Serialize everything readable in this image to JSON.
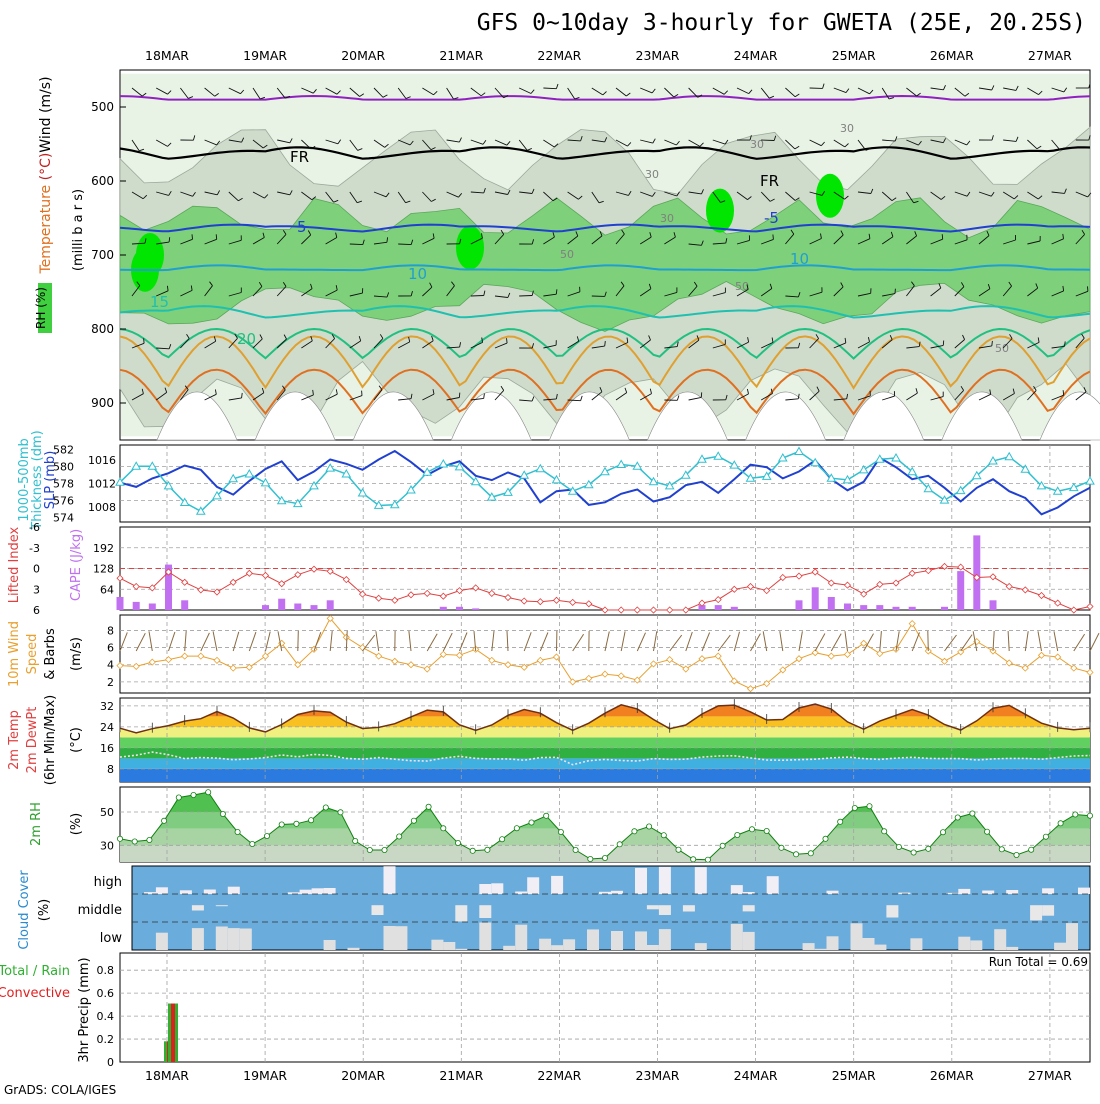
{
  "title": "GFS 0~10day 3-hourly for GWETA (25E, 20.25S)",
  "footer": "GrADS: COLA/IGES",
  "run_total": "Run Total = 0.69",
  "colors": {
    "rh_green": "#00e600",
    "wind_temp_purple": "#9a20c8",
    "slp_blue": "#2040d0",
    "thick_cyan": "#30c0d0",
    "cape_bar": "#c070f0",
    "li_red": "#e04040",
    "wind_orange": "#e8a030",
    "rh2m_green": "#40c040",
    "cloud_blue": "#6aacdc",
    "precip_green": "#30b030",
    "precip_red": "#e02020"
  },
  "chart_data": [
    {
      "type": "heatmap",
      "name_panel": "upper-air cross-section",
      "ylabel_parts": [
        "RH (%)",
        "Temperature (°C)",
        "Wind (m/s)"
      ],
      "ylabel_right": "(milli b a r s)",
      "x_ticks": [
        "18MAR",
        "19MAR",
        "20MAR",
        "21MAR",
        "22MAR",
        "23MAR",
        "24MAR",
        "25MAR",
        "26MAR",
        "27MAR"
      ],
      "y_ticks": [
        "500",
        "600",
        "700",
        "800",
        "900"
      ],
      "ylim": [
        950,
        450
      ],
      "isotherm_labels": [
        "-5",
        "FR",
        "FR",
        "5",
        "10",
        "15",
        "20",
        "-5",
        "10"
      ],
      "rh_labels": [
        "30",
        "30",
        "30",
        "30",
        "50",
        "50",
        "50"
      ]
    },
    {
      "type": "line",
      "name_panel": "thickness and slp",
      "ylabel_left": "1000-500mb Thickness (dm)",
      "ylabel_right": "SLP (mb)",
      "left_ticks": [
        "582",
        "580",
        "578",
        "576",
        "574"
      ],
      "right_ticks": [
        "1016",
        "1012",
        "1008"
      ],
      "series": [
        {
          "name": "Thickness",
          "values": [
            578.1,
            577.6,
            578.6,
            579.2,
            580.1,
            579.6,
            577.6,
            576.7,
            578.3,
            579.7,
            580.6,
            578.4,
            579.4,
            580.8,
            580.3,
            579.6,
            580.8,
            581.8,
            580.5,
            579.0,
            580.0,
            580.6,
            578.9,
            578.4,
            579.3,
            578.6,
            575.8,
            577.1,
            577.3,
            575.5,
            575.8,
            576.8,
            577.3,
            575.9,
            576.4,
            577.8,
            578.2,
            576.9,
            578.5,
            580.2,
            579.9,
            578.6,
            579.4,
            580.7,
            578.5,
            577.2,
            578.2,
            581.0,
            579.9,
            578.5,
            578.9,
            577.5,
            575.9,
            577.5,
            578.5,
            577.1,
            576.3,
            574.4,
            575.2,
            576.5,
            577.5
          ]
        },
        {
          "name": "SLP",
          "values": [
            1012.2,
            1014.9,
            1014.9,
            1011.6,
            1008.8,
            1007.3,
            1009.9,
            1012.8,
            1013.6,
            1012.1,
            1009.1,
            1008.6,
            1011.6,
            1014.6,
            1013.6,
            1010.4,
            1008.3,
            1008.4,
            1010.9,
            1013.9,
            1015.3,
            1014.8,
            1012.3,
            1009.7,
            1010.5,
            1013.4,
            1014.5,
            1012.6,
            1010.7,
            1011.8,
            1014.0,
            1015.2,
            1014.9,
            1012.3,
            1011.6,
            1013.4,
            1016.1,
            1016.6,
            1015.1,
            1012.9,
            1013.2,
            1016.3,
            1017.4,
            1015.5,
            1012.9,
            1012.6,
            1014.3,
            1016.1,
            1016.3,
            1014.0,
            1011.1,
            1009.2,
            1010.8,
            1013.3,
            1015.8,
            1016.5,
            1014.4,
            1011.6,
            1010.7,
            1011.3,
            1012.4
          ]
        }
      ]
    },
    {
      "type": "bar",
      "name_panel": "cape and lifted index",
      "ylabel_left": "Lifted Index",
      "ylabel_right": "CAPE (J/kg)",
      "li_ticks": [
        "-6",
        "-3",
        "0",
        "3",
        "6"
      ],
      "cape_ticks": [
        "192",
        "128",
        "64"
      ],
      "series": [
        {
          "name": "CAPE",
          "values": [
            40,
            25,
            20,
            140,
            30,
            0,
            0,
            0,
            0,
            15,
            35,
            20,
            15,
            30,
            0,
            0,
            0,
            0,
            0,
            0,
            10,
            10,
            5,
            0,
            0,
            0,
            0,
            0,
            0,
            0,
            0,
            0,
            0,
            0,
            0,
            0,
            15,
            15,
            10,
            0,
            0,
            0,
            30,
            70,
            40,
            20,
            15,
            15,
            10,
            10,
            0,
            10,
            120,
            230,
            30,
            0,
            0,
            0,
            0,
            0,
            0
          ]
        },
        {
          "name": "Lifted Index",
          "values": [
            1.4,
            2.6,
            2.8,
            0.5,
            2.0,
            3.1,
            3.4,
            2.0,
            0.7,
            1.0,
            2.2,
            0.9,
            0.1,
            0.4,
            1.6,
            3.7,
            4.3,
            4.6,
            3.8,
            3.6,
            4.0,
            3.2,
            2.8,
            3.6,
            4.2,
            4.7,
            4.8,
            4.6,
            4.9,
            5.1,
            6.0,
            6.0,
            6.0,
            6.0,
            6.0,
            6.0,
            5.0,
            4.5,
            3.0,
            2.6,
            3.2,
            1.3,
            1.1,
            0.5,
            2.1,
            2.4,
            3.7,
            2.3,
            2.1,
            0.7,
            0.3,
            -0.3,
            -0.2,
            1.3,
            1.2,
            2.6,
            3.1,
            3.9,
            5.0,
            6.0,
            5.5
          ]
        }
      ]
    },
    {
      "type": "line",
      "name_panel": "10m wind",
      "ylabel": "10m Wind Speed & Barbs (m/s)",
      "ticks": [
        "8",
        "6",
        "4",
        "2"
      ],
      "series": [
        {
          "name": "10m Wind Speed",
          "values": [
            3.9,
            3.8,
            4.3,
            4.6,
            5.0,
            5.0,
            4.5,
            3.6,
            3.7,
            5.0,
            6.5,
            4.0,
            5.8,
            9.4,
            7.2,
            6.0,
            5.0,
            4.4,
            4.0,
            3.5,
            5.2,
            5.1,
            5.8,
            4.5,
            4.0,
            3.7,
            4.5,
            4.9,
            2.0,
            2.4,
            2.9,
            2.7,
            2.2,
            4.1,
            4.6,
            3.5,
            4.7,
            5.0,
            2.1,
            1.2,
            1.8,
            3.4,
            4.7,
            5.4,
            5.0,
            5.2,
            6.5,
            5.3,
            5.8,
            8.8,
            5.6,
            4.4,
            5.5,
            6.7,
            5.6,
            4.2,
            3.6,
            5.1,
            4.9,
            3.6,
            3.1
          ]
        }
      ]
    },
    {
      "type": "area",
      "name_panel": "2m temp",
      "ylabel": "2m Temp 2m DewPt (6hr Min/Max) (°C)",
      "ticks": [
        "32",
        "24",
        "16",
        "8"
      ],
      "series": [
        {
          "name": "2m Temp",
          "values": [
            23.5,
            21.7,
            23.3,
            24.5,
            26.2,
            27.1,
            29.8,
            27.4,
            23.6,
            22.1,
            24.9,
            28.7,
            30.1,
            29.6,
            25.8,
            23.4,
            23.8,
            25.2,
            27.8,
            30.4,
            29.7,
            24.8,
            22.7,
            24.7,
            28.4,
            30.6,
            29.2,
            25.6,
            22.7,
            25.4,
            29.2,
            32.4,
            30.8,
            26.8,
            23.3,
            24.7,
            28.9,
            32.0,
            32.3,
            29.7,
            26.6,
            26.8,
            31.2,
            32.7,
            30.8,
            25.9,
            23.1,
            26.2,
            28.4,
            30.6,
            28.5,
            24.9,
            22.8,
            26.3,
            31.1,
            32.2,
            28.8,
            25.4,
            23.6,
            22.9,
            23.5
          ]
        },
        {
          "name": "2m DewPt",
          "values": [
            12.5,
            13.2,
            14.4,
            13.4,
            11.9,
            12.3,
            12.1,
            11.5,
            11.8,
            12.3,
            13.3,
            12.6,
            13.5,
            13.1,
            12.0,
            11.7,
            12.3,
            11.7,
            11.1,
            11.0,
            12.1,
            12.8,
            12.0,
            11.8,
            11.8,
            11.3,
            12.3,
            12.4,
            9.6,
            11.1,
            11.6,
            11.2,
            11.0,
            11.9,
            11.6,
            11.7,
            12.5,
            12.9,
            13.0,
            12.2,
            11.4,
            11.3,
            11.5,
            11.7,
            12.2,
            12.5,
            11.9,
            11.6,
            12.1,
            12.4,
            12.0,
            11.9,
            11.9,
            11.4,
            11.8,
            12.0,
            12.0,
            11.7,
            12.3,
            12.9,
            13.1
          ]
        }
      ]
    },
    {
      "type": "area",
      "name_panel": "2m rh",
      "ylabel": "2m RH (%)",
      "ticks": [
        "50",
        "30"
      ],
      "series": [
        {
          "name": "2m RH",
          "values": [
            33.9,
            32.3,
            33.2,
            44.7,
            58.7,
            60.2,
            61.9,
            48.8,
            38.0,
            30.8,
            35.6,
            42.5,
            42.9,
            45.1,
            52.7,
            49.8,
            32.6,
            27.2,
            27.2,
            35.3,
            44.8,
            53.1,
            40.2,
            31.4,
            26.7,
            27.3,
            33.7,
            40.3,
            43.7,
            47.7,
            38.0,
            27.2,
            21.8,
            22.4,
            30.6,
            38.4,
            41.3,
            36.1,
            27.4,
            21.6,
            21.4,
            29.7,
            36.2,
            39.6,
            38.6,
            28.5,
            24.6,
            25.2,
            33.9,
            44.1,
            52.4,
            53.5,
            38.4,
            29.0,
            25.7,
            27.9,
            37.9,
            46.7,
            49.1,
            38.2,
            27.6,
            24.2,
            27.4,
            35.2,
            43.2,
            48.5,
            47.8
          ]
        }
      ]
    },
    {
      "type": "heatmap",
      "name_panel": "cloud cover",
      "ylabel": "Cloud Cover (%)",
      "levels": [
        "high",
        "middle",
        "low"
      ]
    },
    {
      "type": "bar",
      "name_panel": "precipitation",
      "ylabel_left": "Total / Rain",
      "ylabel_left2": "Convective",
      "ylabel": "3hr Precip (mm)",
      "ticks": [
        "0.8",
        "0.6",
        "0.4",
        "0.2",
        "0"
      ],
      "ylim": [
        0,
        0.95
      ],
      "x_ticks": [
        "18MAR",
        "19MAR",
        "20MAR",
        "21MAR",
        "22MAR",
        "23MAR",
        "24MAR",
        "25MAR",
        "26MAR",
        "27MAR"
      ],
      "series": [
        {
          "name": "Total / Rain",
          "values": [
            0,
            0,
            0,
            0,
            0.18,
            0.51,
            0,
            0
          ]
        },
        {
          "name": "Convective",
          "values": [
            0,
            0,
            0,
            0,
            0.18,
            0.51,
            0,
            0
          ]
        }
      ]
    }
  ]
}
